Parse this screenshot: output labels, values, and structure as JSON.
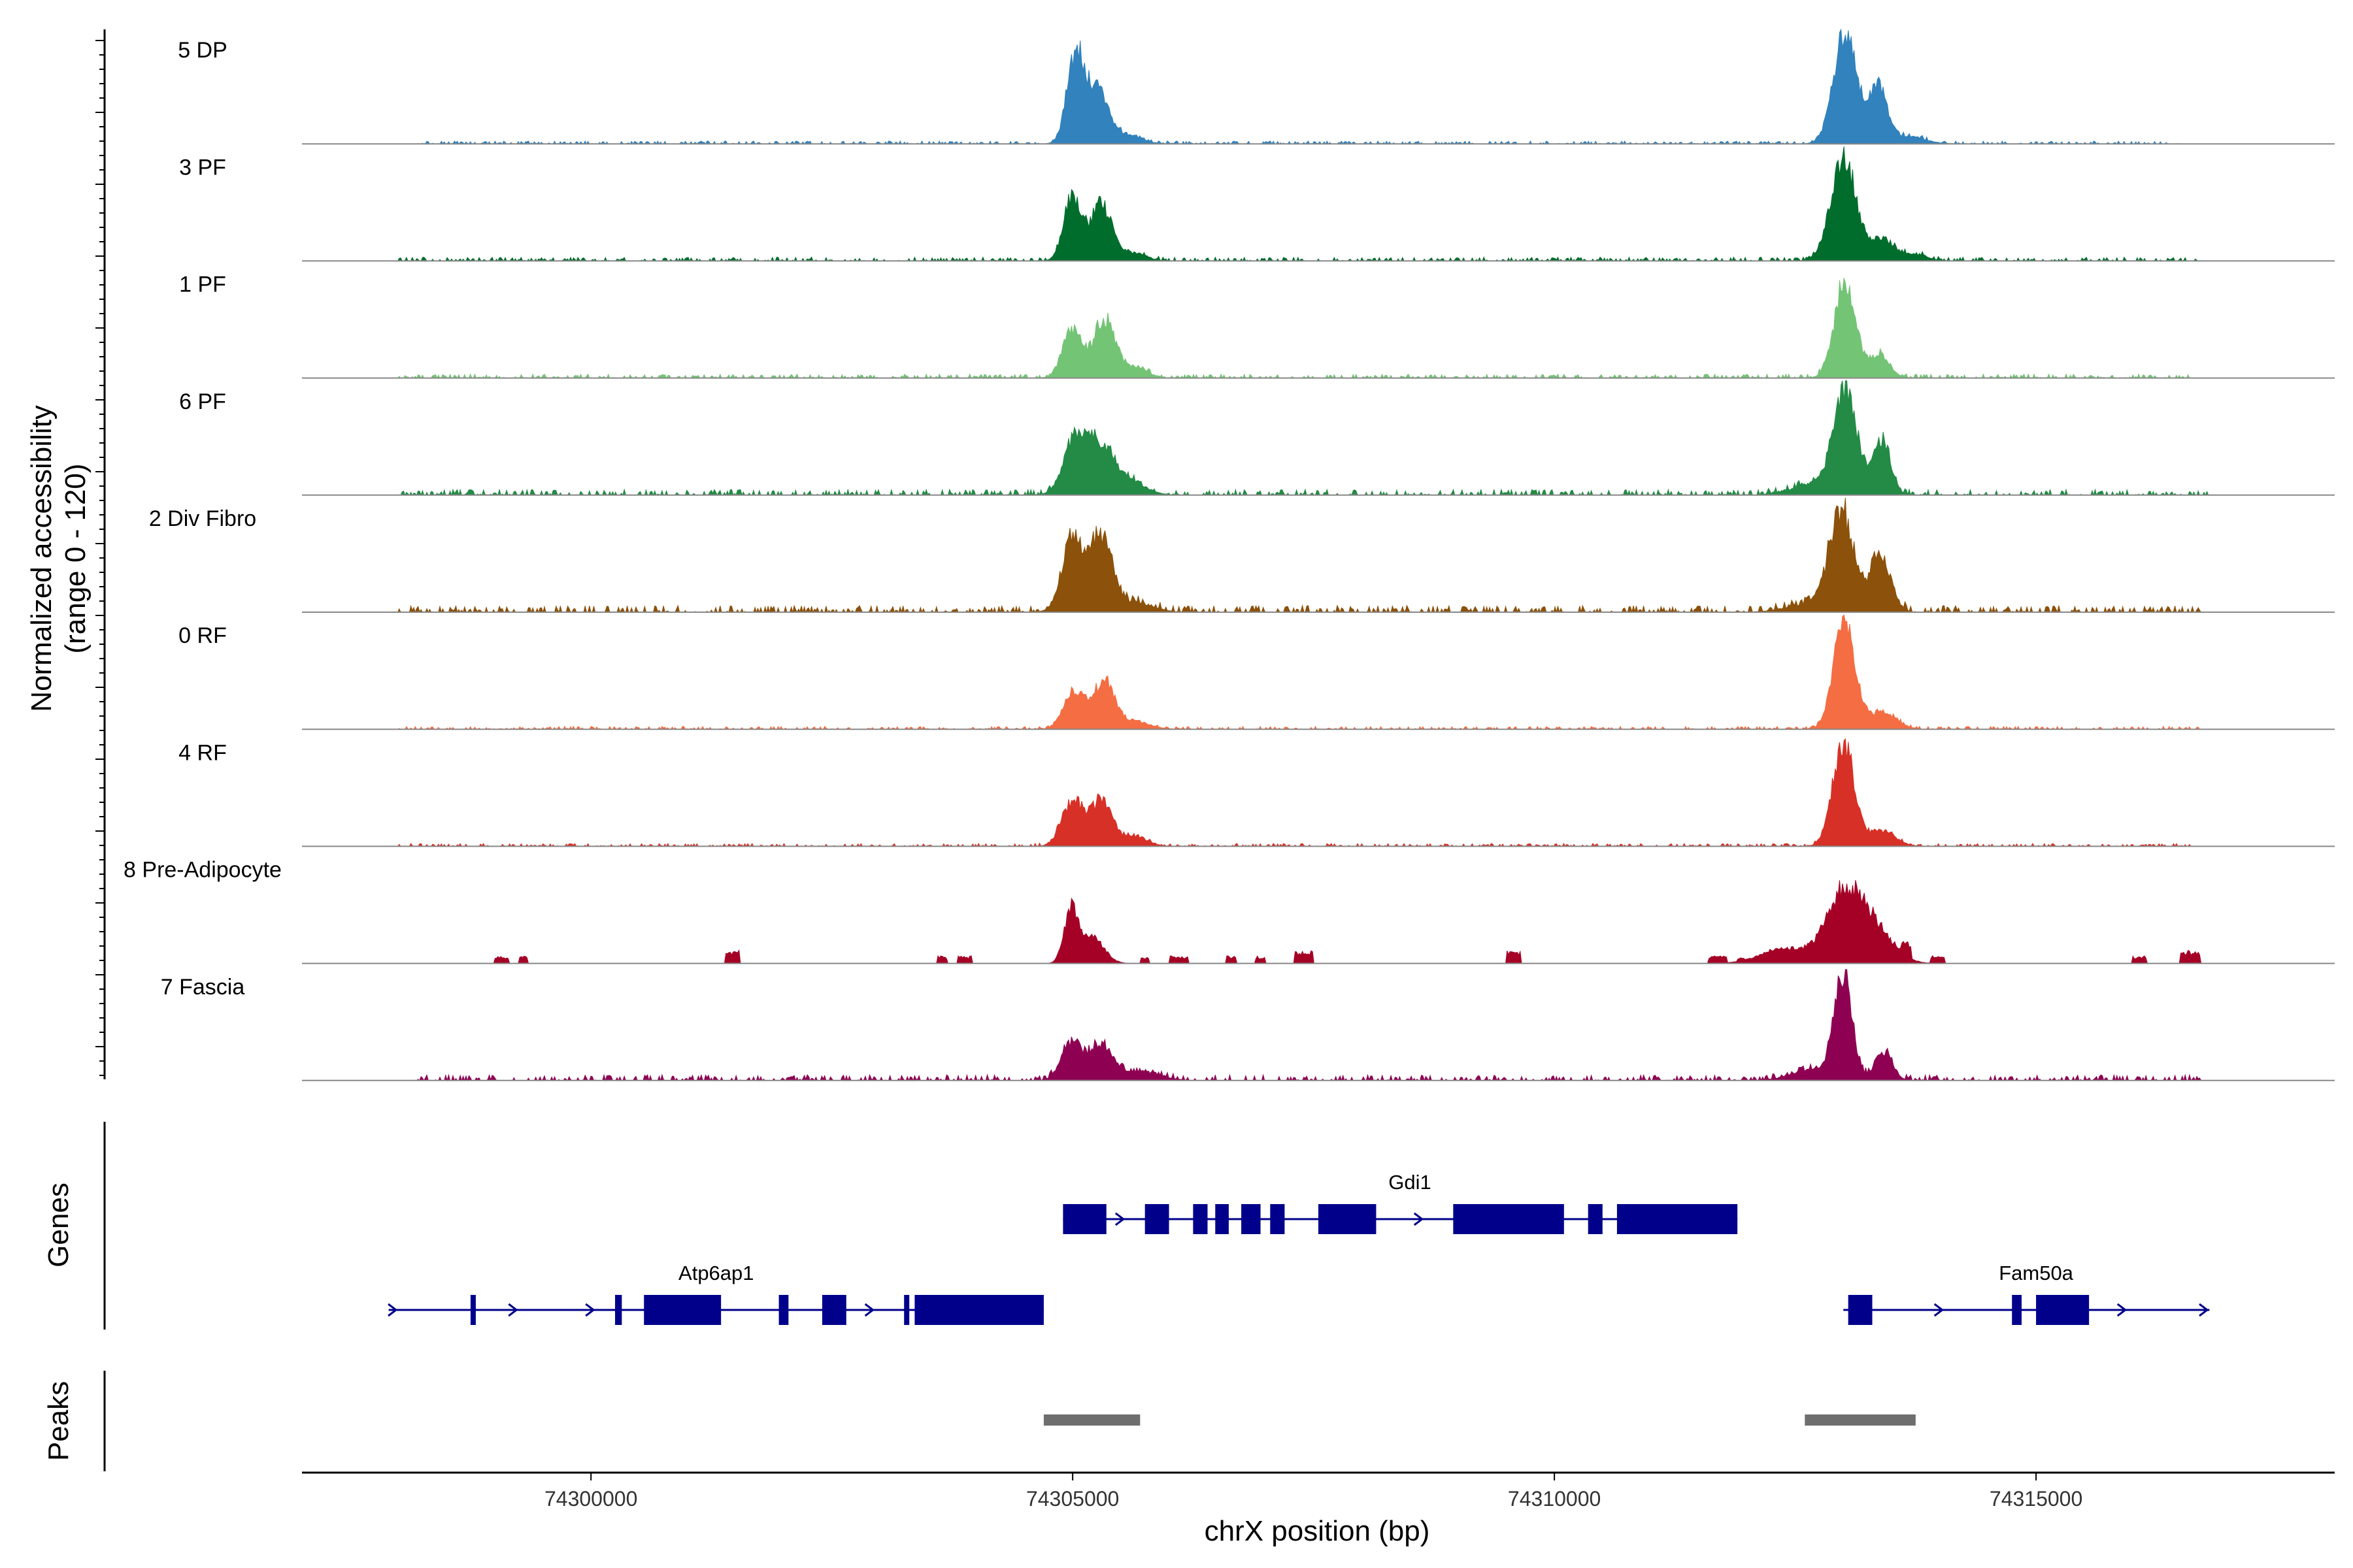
{
  "chart_data": {
    "type": "area",
    "title": "",
    "xlabel": "chrX position (bp)",
    "ylabel": "Normalized accessibility",
    "ylabel_sub": "(range 0 - 120)",
    "xlim": [
      74297000,
      74318100
    ],
    "ylim": [
      0,
      120
    ],
    "x_ticks": [
      74300000,
      74305000,
      74310000,
      74315000
    ],
    "x_tick_labels": [
      "74300000",
      "74305000",
      "74310000",
      "74315000"
    ],
    "panel_labels": {
      "genes": "Genes",
      "peaks": "Peaks"
    },
    "tracks": [
      {
        "name": "5 DP",
        "color": "#3182BD",
        "peaks": [
          [
            74305030,
            90,
            90
          ],
          [
            74305250,
            55,
            110
          ],
          [
            74305550,
            10,
            150
          ],
          [
            74313020,
            120,
            120
          ],
          [
            74313360,
            60,
            90
          ],
          [
            74313650,
            8,
            180
          ]
        ],
        "noise": [
          [
            74298200,
            74316500,
            3
          ]
        ]
      },
      {
        "name": "3 PF",
        "color": "#006D2C",
        "peaks": [
          [
            74305000,
            68,
            90
          ],
          [
            74305300,
            58,
            110
          ],
          [
            74305650,
            8,
            120
          ],
          [
            74313000,
            108,
            130
          ],
          [
            74313400,
            22,
            110
          ],
          [
            74313700,
            7,
            150
          ]
        ],
        "noise": [
          [
            74298000,
            74316700,
            4
          ]
        ]
      },
      {
        "name": "1 PF",
        "color": "#74C476",
        "peaks": [
          [
            74305000,
            52,
            100
          ],
          [
            74305330,
            60,
            110
          ],
          [
            74305650,
            12,
            120
          ],
          [
            74313020,
            100,
            110
          ],
          [
            74313380,
            24,
            100
          ]
        ],
        "noise": [
          [
            74298000,
            74316600,
            4
          ]
        ]
      },
      {
        "name": "6 PF",
        "color": "#238B45",
        "peaks": [
          [
            74305020,
            56,
            120
          ],
          [
            74305300,
            52,
            150
          ],
          [
            74305650,
            10,
            150
          ],
          [
            74313020,
            108,
            120
          ],
          [
            74313400,
            58,
            90
          ],
          [
            74312700,
            12,
            220
          ]
        ],
        "noise": [
          [
            74298000,
            74316800,
            6
          ]
        ]
      },
      {
        "name": "2 Div Fibro",
        "color": "#8C510A",
        "peaks": [
          [
            74305000,
            76,
            110
          ],
          [
            74305300,
            80,
            110
          ],
          [
            74305650,
            10,
            180
          ],
          [
            74312980,
            104,
            120
          ],
          [
            74313380,
            58,
            110
          ],
          [
            74312700,
            10,
            250
          ]
        ],
        "noise": [
          [
            74298000,
            74316700,
            7
          ]
        ]
      },
      {
        "name": "0 RF",
        "color": "#F46D43",
        "peaks": [
          [
            74305020,
            40,
            110
          ],
          [
            74305330,
            48,
            110
          ],
          [
            74305650,
            8,
            150
          ],
          [
            74313010,
            112,
            110
          ],
          [
            74313400,
            18,
            140
          ]
        ],
        "noise": [
          [
            74298000,
            74316700,
            3
          ]
        ]
      },
      {
        "name": "4 RF",
        "color": "#D73027",
        "peaks": [
          [
            74305000,
            48,
            110
          ],
          [
            74305300,
            48,
            110
          ],
          [
            74305650,
            10,
            130
          ],
          [
            74313000,
            110,
            110
          ],
          [
            74313400,
            16,
            140
          ]
        ],
        "noise": [
          [
            74298000,
            74316600,
            3
          ]
        ]
      },
      {
        "name": "8 Pre-Adipocyte",
        "color": "#A50026",
        "peaks": [
          [
            74304980,
            55,
            70
          ],
          [
            74305200,
            28,
            120
          ],
          [
            74313000,
            68,
            180
          ],
          [
            74313300,
            36,
            200
          ],
          [
            74312400,
            16,
            250
          ]
        ],
        "noise": [],
        "blocks": [
          [
            74299000,
            74299150,
            8
          ],
          [
            74299250,
            74299350,
            8
          ],
          [
            74301400,
            74301550,
            14
          ],
          [
            74303600,
            74303700,
            8
          ],
          [
            74303800,
            74303950,
            8
          ],
          [
            74304900,
            74305300,
            22
          ],
          [
            74305700,
            74305800,
            8
          ],
          [
            74306000,
            74306200,
            8
          ],
          [
            74306600,
            74306700,
            8
          ],
          [
            74306900,
            74307000,
            8
          ],
          [
            74307300,
            74307500,
            14
          ],
          [
            74309500,
            74309650,
            14
          ],
          [
            74311600,
            74311800,
            8
          ],
          [
            74311900,
            74312050,
            6
          ],
          [
            74312150,
            74312350,
            10
          ],
          [
            74312450,
            74312600,
            14
          ],
          [
            74312600,
            74313700,
            24
          ],
          [
            74313900,
            74314050,
            8
          ],
          [
            74316000,
            74316150,
            8
          ],
          [
            74316500,
            74316700,
            14
          ]
        ]
      },
      {
        "name": "7 Fascia",
        "color": "#8E0152",
        "peaks": [
          [
            74305000,
            40,
            110
          ],
          [
            74305300,
            36,
            110
          ],
          [
            74305700,
            10,
            200
          ],
          [
            74313000,
            110,
            90
          ],
          [
            74313420,
            30,
            90
          ],
          [
            74312700,
            12,
            220
          ]
        ],
        "noise": [
          [
            74298200,
            74316700,
            6
          ]
        ]
      }
    ],
    "genes": [
      {
        "name": "Gdi1",
        "strand": "+",
        "start": 74304900,
        "end": 74311900,
        "exons": [
          [
            74304900,
            74305350
          ],
          [
            74305750,
            74306000
          ],
          [
            74306250,
            74306400
          ],
          [
            74306480,
            74306620
          ],
          [
            74306750,
            74306950
          ],
          [
            74307050,
            74307200
          ],
          [
            74307550,
            74308150
          ],
          [
            74308950,
            74310100
          ],
          [
            74310350,
            74310500
          ],
          [
            74310650,
            74311900
          ]
        ],
        "arrows": [
          74305500,
          74308600
        ]
      },
      {
        "name": "Atp6ap1",
        "strand": "+",
        "start": 74297900,
        "end": 74304700,
        "exons": [
          [
            74298750,
            74298800
          ],
          [
            74300250,
            74300320
          ],
          [
            74300550,
            74301350
          ],
          [
            74301950,
            74302050
          ],
          [
            74302400,
            74302650
          ],
          [
            74303250,
            74303280
          ],
          [
            74303360,
            74304700
          ]
        ],
        "arrows": [
          74297950,
          74299200,
          74300000,
          74302900
        ]
      },
      {
        "name": "Fam50a",
        "strand": "+",
        "start": 74313000,
        "end": 74316800,
        "exons": [
          [
            74313050,
            74313300
          ],
          [
            74314750,
            74314850
          ],
          [
            74315000,
            74315550
          ]
        ],
        "arrows": [
          74314000,
          74315900,
          74316750
        ]
      }
    ],
    "peaks_regions": [
      [
        74304700,
        74305700
      ],
      [
        74312600,
        74313750
      ]
    ]
  }
}
